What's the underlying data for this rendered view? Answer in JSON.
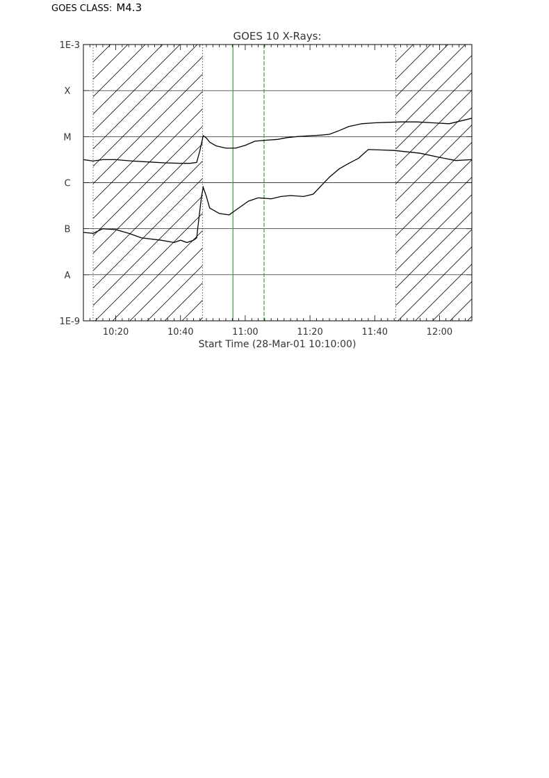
{
  "header": {
    "label": "GOES CLASS:",
    "class_value": "M4.3"
  },
  "chart_data": {
    "type": "line",
    "title": "GOES 10 X-Rays:",
    "xlabel": "Start Time (28-Mar-01 10:10:00)",
    "ylabel": "",
    "x_range_minutes": [
      0,
      120
    ],
    "x_ticks": [
      {
        "minute": 10,
        "label": "10:20"
      },
      {
        "minute": 30,
        "label": "10:40"
      },
      {
        "minute": 50,
        "label": "11:00"
      },
      {
        "minute": 70,
        "label": "11:20"
      },
      {
        "minute": 90,
        "label": "11:40"
      },
      {
        "minute": 110,
        "label": "12:00"
      }
    ],
    "y_scale": "log",
    "y_range_exp": [
      -9,
      -3
    ],
    "y_ticks": [
      {
        "exp": -3,
        "label": "1E-3"
      },
      {
        "exp": -4,
        "label": "X"
      },
      {
        "exp": -5,
        "label": "M"
      },
      {
        "exp": -6,
        "label": "C"
      },
      {
        "exp": -7,
        "label": "B"
      },
      {
        "exp": -8,
        "label": "A"
      },
      {
        "exp": -9,
        "label": "1E-9"
      }
    ],
    "grid_exps": [
      -4,
      -5,
      -6,
      -7,
      -8
    ],
    "hatched_intervals": [
      [
        3,
        36.8
      ],
      [
        96.5,
        120
      ]
    ],
    "flare_lines": [
      {
        "minute": 46.2,
        "style": "solid",
        "color": "#22aa22"
      },
      {
        "minute": 55.8,
        "style": "dashed",
        "color": "#22aa22"
      }
    ],
    "series": [
      {
        "points": [
          [
            0,
            -5.5
          ],
          [
            3,
            -5.53
          ],
          [
            6,
            -5.5
          ],
          [
            10,
            -5.5
          ],
          [
            15,
            -5.53
          ],
          [
            20,
            -5.55
          ],
          [
            25,
            -5.57
          ],
          [
            30,
            -5.58
          ],
          [
            33,
            -5.58
          ],
          [
            35,
            -5.56
          ],
          [
            36,
            -5.3
          ],
          [
            37,
            -4.98
          ],
          [
            38,
            -5.03
          ],
          [
            39,
            -5.12
          ],
          [
            41,
            -5.2
          ],
          [
            44,
            -5.25
          ],
          [
            47,
            -5.25
          ],
          [
            50,
            -5.19
          ],
          [
            53,
            -5.1
          ],
          [
            56,
            -5.08
          ],
          [
            60,
            -5.06
          ],
          [
            63,
            -5.02
          ],
          [
            66,
            -5.0
          ],
          [
            70,
            -4.98
          ],
          [
            73,
            -4.97
          ],
          [
            76,
            -4.95
          ],
          [
            79,
            -4.87
          ],
          [
            82,
            -4.78
          ],
          [
            86,
            -4.72
          ],
          [
            90,
            -4.7
          ],
          [
            94,
            -4.69
          ],
          [
            98,
            -4.68
          ],
          [
            103,
            -4.68
          ],
          [
            108,
            -4.7
          ],
          [
            113,
            -4.72
          ],
          [
            120,
            -4.6
          ]
        ]
      },
      {
        "points": [
          [
            0,
            -7.08
          ],
          [
            3,
            -7.1
          ],
          [
            6,
            -7.0
          ],
          [
            10,
            -7.02
          ],
          [
            14,
            -7.1
          ],
          [
            18,
            -7.2
          ],
          [
            24,
            -7.25
          ],
          [
            28,
            -7.3
          ],
          [
            30,
            -7.25
          ],
          [
            32,
            -7.3
          ],
          [
            34,
            -7.25
          ],
          [
            35,
            -7.2
          ],
          [
            35.8,
            -6.7
          ],
          [
            36.5,
            -6.3
          ],
          [
            37,
            -6.1
          ],
          [
            38,
            -6.3
          ],
          [
            39,
            -6.55
          ],
          [
            42,
            -6.67
          ],
          [
            45,
            -6.7
          ],
          [
            48,
            -6.55
          ],
          [
            51,
            -6.4
          ],
          [
            54,
            -6.33
          ],
          [
            58,
            -6.35
          ],
          [
            61,
            -6.3
          ],
          [
            64,
            -6.28
          ],
          [
            68,
            -6.3
          ],
          [
            71,
            -6.25
          ],
          [
            73,
            -6.1
          ],
          [
            76,
            -5.88
          ],
          [
            79,
            -5.7
          ],
          [
            82,
            -5.58
          ],
          [
            85,
            -5.47
          ],
          [
            88,
            -5.28
          ],
          [
            92,
            -5.29
          ],
          [
            96,
            -5.3
          ],
          [
            100,
            -5.33
          ],
          [
            104,
            -5.36
          ],
          [
            110,
            -5.45
          ],
          [
            115,
            -5.52
          ],
          [
            120,
            -5.5
          ]
        ]
      }
    ]
  }
}
